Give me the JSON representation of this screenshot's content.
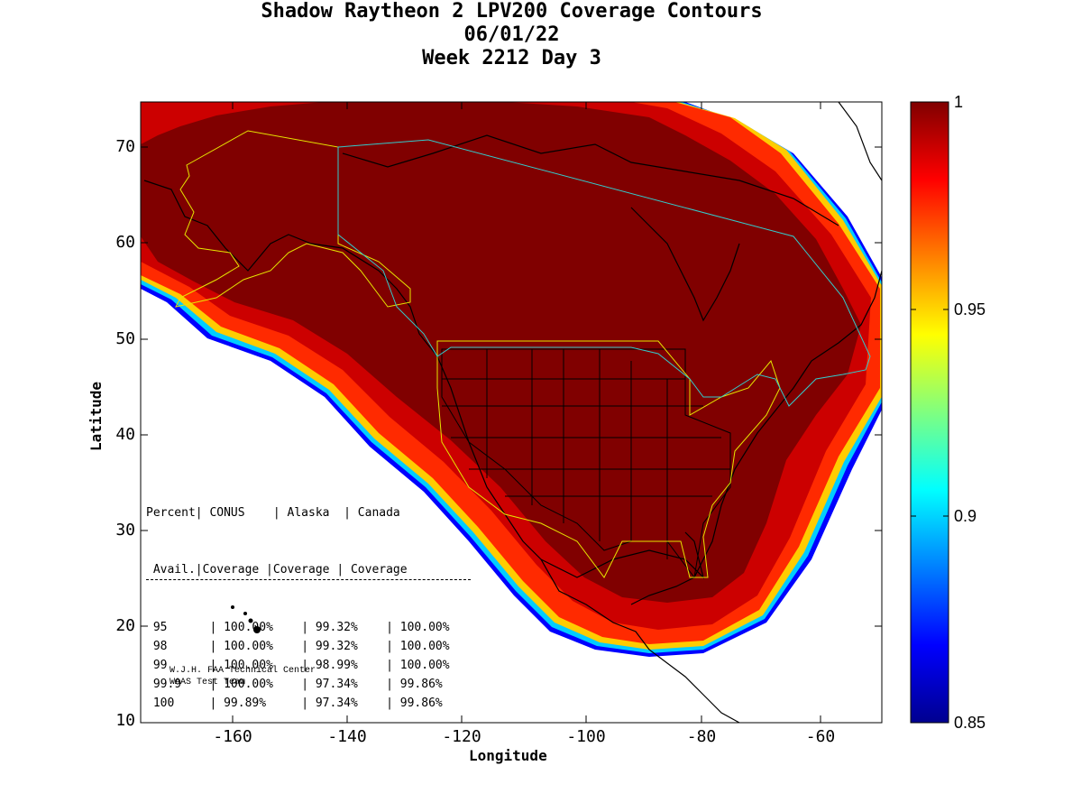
{
  "title": {
    "line1": "Shadow Raytheon 2 LPV200 Coverage Contours",
    "line2": "06/01/22",
    "line3": "Week 2212 Day 3"
  },
  "axes": {
    "xlabel": "Longitude",
    "ylabel": "Latitude",
    "x_ticks": [
      "-160",
      "-140",
      "-120",
      "-100",
      "-80",
      "-60"
    ],
    "y_ticks": [
      "70",
      "60",
      "50",
      "40",
      "30",
      "20",
      "10"
    ],
    "xlim": [
      -175,
      -50
    ],
    "ylim": [
      10,
      75
    ]
  },
  "colorbar": {
    "ticks": [
      "1",
      "0.95",
      "0.9",
      "0.85"
    ],
    "range": [
      0.85,
      1.0
    ],
    "colormap": "jet"
  },
  "coverage_table": {
    "header1": [
      "Percent",
      "CONUS",
      "Alaska",
      "Canada"
    ],
    "header2": [
      "Avail.",
      "Coverage",
      "Coverage",
      "Coverage"
    ],
    "rows": [
      [
        "95",
        "100.00%",
        "99.32%",
        "100.00%"
      ],
      [
        "98",
        "100.00%",
        "99.32%",
        "100.00%"
      ],
      [
        "99",
        "100.00%",
        "98.99%",
        "100.00%"
      ],
      [
        "99.9",
        "100.00%",
        "97.34%",
        "99.86%"
      ],
      [
        "100",
        "99.89%",
        "97.34%",
        "99.86%"
      ]
    ]
  },
  "credits": {
    "line1": "W.J.H. FAA Technical Center",
    "line2": "WAAS Test Team"
  },
  "colors": {
    "full_coverage": "#800000",
    "service_boundary_us": "#e6e600",
    "service_boundary_canada": "#33cccc",
    "coastline": "#000000"
  }
}
